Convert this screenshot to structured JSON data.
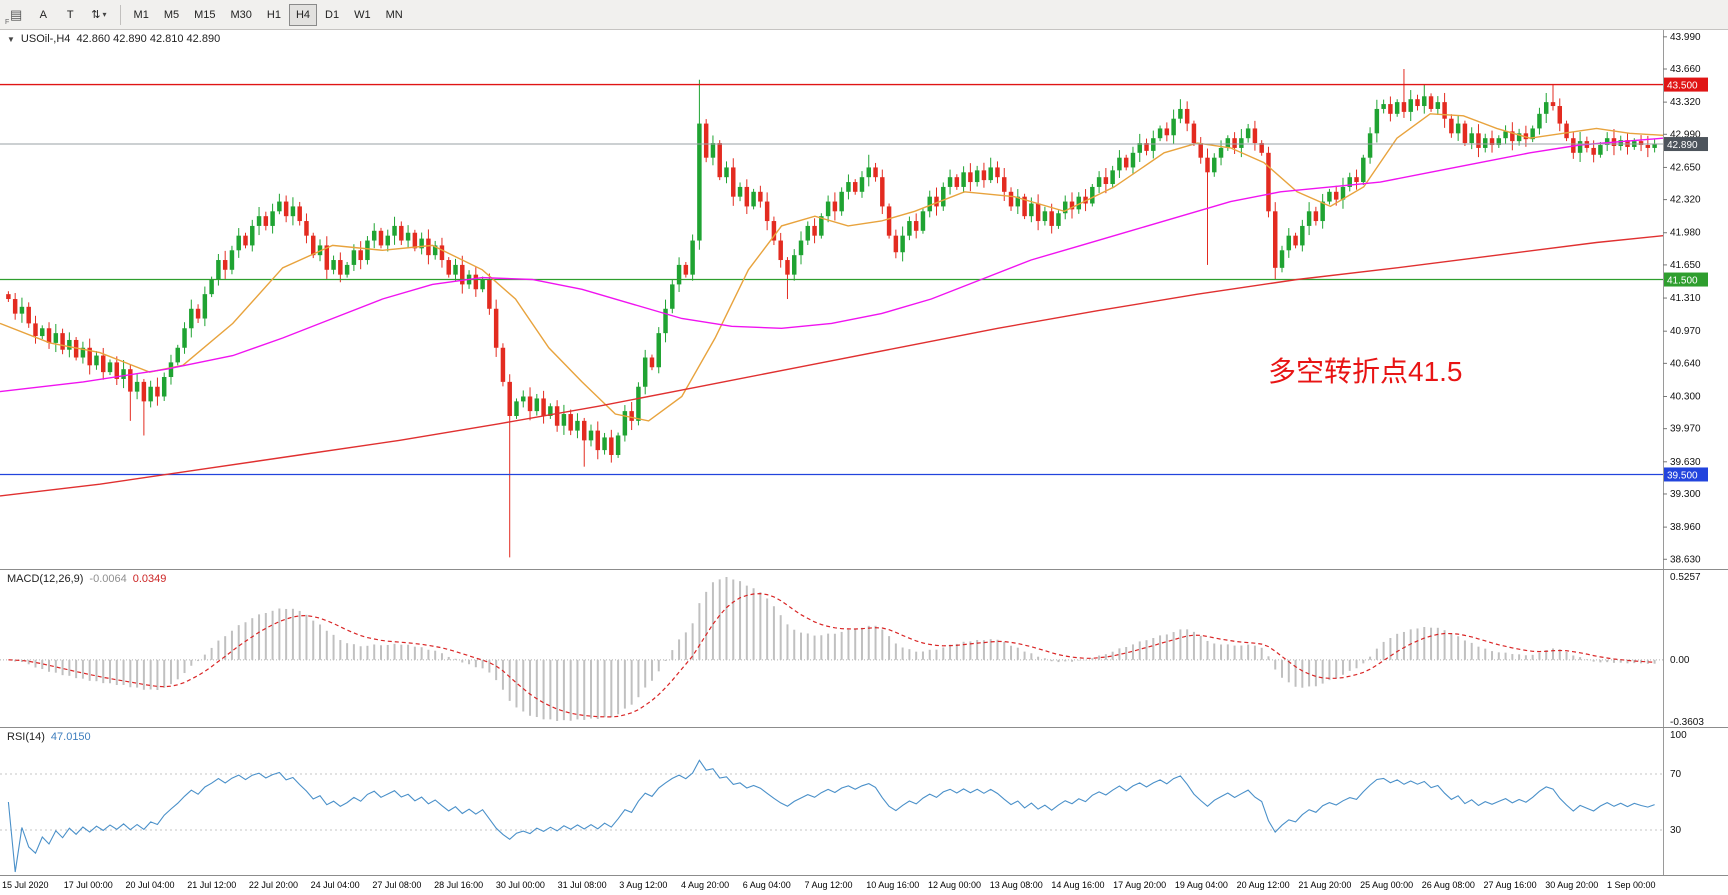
{
  "toolbar": {
    "f_label": "F",
    "annotate_button": "A",
    "text_button": "T",
    "timeframes": [
      "M1",
      "M5",
      "M15",
      "M30",
      "H1",
      "H4",
      "D1",
      "W1",
      "MN"
    ],
    "active_timeframe": "H4"
  },
  "main_chart": {
    "symbol_label": "USOil-,H4",
    "ohlc": "42.860 42.890 42.810 42.890",
    "annotation": "多空转折点41.5",
    "annotation_color": "#e81414"
  },
  "macd_panel": {
    "label": "MACD(12,26,9)",
    "value": "-0.0064",
    "signal_value": "0.0349",
    "scale_top": "0.5257",
    "scale_zero": "0.00",
    "scale_bottom": "-0.3603"
  },
  "rsi_panel": {
    "label": "RSI(14)",
    "value": "47.0150",
    "scale": [
      "100",
      "70",
      "30"
    ]
  },
  "chart_data": {
    "type": "candlestick",
    "symbol": "USOil-",
    "timeframe": "H4",
    "title": "USOil- H4 candlestick chart with MACD(12,26,9) and RSI(14)",
    "price_range": [
      38.52,
      44.06
    ],
    "y_ticks": [
      "43.990",
      "43.660",
      "43.320",
      "42.990",
      "42.650",
      "42.320",
      "41.980",
      "41.650",
      "41.310",
      "40.970",
      "40.640",
      "40.300",
      "39.970",
      "39.630",
      "39.300",
      "38.960",
      "38.630"
    ],
    "x_labels": [
      "15 Jul 2020",
      "17 Jul 00:00",
      "20 Jul 04:00",
      "21 Jul 12:00",
      "22 Jul 20:00",
      "24 Jul 04:00",
      "27 Jul 08:00",
      "28 Jul 16:00",
      "30 Jul 00:00",
      "31 Jul 08:00",
      "3 Aug 12:00",
      "4 Aug 20:00",
      "6 Aug 04:00",
      "7 Aug 12:00",
      "10 Aug 16:00",
      "12 Aug 00:00",
      "13 Aug 08:00",
      "14 Aug 16:00",
      "17 Aug 20:00",
      "19 Aug 04:00",
      "20 Aug 12:00",
      "21 Aug 20:00",
      "25 Aug 00:00",
      "26 Aug 08:00",
      "27 Aug 16:00",
      "30 Aug 20:00",
      "1 Sep 00:00"
    ],
    "hlines": [
      {
        "price": 43.5,
        "color": "#e01515",
        "label": "43.500"
      },
      {
        "price": 41.5,
        "color": "#2e9e2e",
        "label": "41.500"
      },
      {
        "price": 39.5,
        "color": "#2244dd",
        "label": "39.500"
      }
    ],
    "current_price": {
      "price": 42.89,
      "label": "42.890",
      "line_color": "#9aa0a6",
      "badge_color": "#4d545c"
    },
    "candles": {
      "up_color": "#1fa332",
      "down_color": "#e32b20",
      "first_open": 41.35,
      "closes": [
        41.3,
        41.15,
        41.22,
        41.05,
        40.92,
        41.0,
        40.85,
        40.95,
        40.78,
        40.88,
        40.7,
        40.8,
        40.62,
        40.72,
        40.55,
        40.65,
        40.48,
        40.58,
        40.35,
        40.45,
        40.25,
        40.4,
        40.3,
        40.5,
        40.65,
        40.8,
        41.0,
        41.2,
        41.1,
        41.35,
        41.5,
        41.7,
        41.6,
        41.8,
        41.95,
        41.85,
        42.05,
        42.15,
        42.05,
        42.2,
        42.3,
        42.15,
        42.25,
        42.1,
        41.95,
        41.75,
        41.85,
        41.6,
        41.7,
        41.55,
        41.65,
        41.8,
        41.7,
        41.9,
        42.0,
        41.85,
        41.95,
        42.05,
        41.9,
        41.98,
        41.82,
        41.92,
        41.75,
        41.85,
        41.7,
        41.55,
        41.65,
        41.45,
        41.55,
        41.4,
        41.5,
        41.2,
        40.8,
        40.45,
        40.1,
        40.25,
        40.3,
        40.15,
        40.28,
        40.1,
        40.2,
        40.0,
        40.12,
        39.95,
        40.05,
        39.85,
        39.95,
        39.75,
        39.88,
        39.7,
        39.9,
        40.15,
        40.05,
        40.4,
        40.7,
        40.6,
        40.95,
        41.2,
        41.45,
        41.65,
        41.55,
        41.9,
        43.1,
        42.75,
        42.9,
        42.55,
        42.65,
        42.35,
        42.45,
        42.25,
        42.4,
        42.3,
        42.1,
        41.9,
        41.7,
        41.55,
        41.75,
        41.9,
        42.05,
        41.95,
        42.15,
        42.3,
        42.2,
        42.4,
        42.5,
        42.4,
        42.55,
        42.65,
        42.55,
        42.25,
        41.95,
        41.78,
        41.95,
        42.1,
        42.0,
        42.2,
        42.35,
        42.25,
        42.45,
        42.55,
        42.45,
        42.6,
        42.5,
        42.62,
        42.52,
        42.65,
        42.55,
        42.4,
        42.25,
        42.35,
        42.15,
        42.28,
        42.1,
        42.2,
        42.05,
        42.18,
        42.3,
        42.22,
        42.35,
        42.28,
        42.45,
        42.55,
        42.48,
        42.62,
        42.75,
        42.65,
        42.8,
        42.9,
        42.82,
        42.95,
        43.05,
        42.98,
        43.15,
        43.25,
        43.1,
        42.9,
        42.75,
        42.6,
        42.75,
        42.85,
        42.95,
        42.85,
        42.95,
        43.05,
        42.9,
        42.8,
        42.2,
        41.62,
        41.8,
        41.95,
        41.85,
        42.05,
        42.2,
        42.1,
        42.3,
        42.4,
        42.32,
        42.45,
        42.55,
        42.5,
        42.75,
        43.0,
        43.25,
        43.3,
        43.2,
        43.32,
        43.22,
        43.35,
        43.28,
        43.38,
        43.25,
        43.32,
        43.15,
        43.0,
        43.1,
        42.9,
        43.0,
        42.85,
        42.95,
        42.88,
        42.95,
        43.02,
        42.92,
        43.0,
        42.94,
        43.05,
        43.2,
        43.32,
        43.28,
        43.1,
        42.95,
        42.8,
        42.92,
        42.85,
        42.78,
        42.88,
        42.95,
        42.87,
        42.93,
        42.86,
        42.92,
        42.88,
        42.85,
        42.89
      ],
      "special_wicks": [
        {
          "i": 18,
          "low": 40.05
        },
        {
          "i": 20,
          "low": 39.9
        },
        {
          "i": 40,
          "high": 42.38
        },
        {
          "i": 74,
          "low": 38.65
        },
        {
          "i": 85,
          "low": 39.58
        },
        {
          "i": 102,
          "high": 43.55
        },
        {
          "i": 115,
          "low": 41.3
        },
        {
          "i": 127,
          "high": 42.78
        },
        {
          "i": 145,
          "high": 42.75
        },
        {
          "i": 173,
          "high": 43.35
        },
        {
          "i": 177,
          "low": 41.65
        },
        {
          "i": 187,
          "low": 41.5
        },
        {
          "i": 206,
          "high": 43.66
        },
        {
          "i": 209,
          "high": 43.5
        },
        {
          "i": 228,
          "high": 43.5
        }
      ]
    },
    "ma_lines": [
      {
        "name": "ma-fast-orange",
        "color": "#e8a33d",
        "points": [
          [
            0,
            41.05
          ],
          [
            0.03,
            40.85
          ],
          [
            0.06,
            40.75
          ],
          [
            0.09,
            40.55
          ],
          [
            0.11,
            40.62
          ],
          [
            0.14,
            41.05
          ],
          [
            0.17,
            41.62
          ],
          [
            0.2,
            41.85
          ],
          [
            0.23,
            41.8
          ],
          [
            0.26,
            41.85
          ],
          [
            0.29,
            41.6
          ],
          [
            0.31,
            41.3
          ],
          [
            0.33,
            40.8
          ],
          [
            0.35,
            40.45
          ],
          [
            0.37,
            40.12
          ],
          [
            0.39,
            40.05
          ],
          [
            0.41,
            40.3
          ],
          [
            0.43,
            40.9
          ],
          [
            0.45,
            41.6
          ],
          [
            0.47,
            42.05
          ],
          [
            0.49,
            42.15
          ],
          [
            0.51,
            42.05
          ],
          [
            0.53,
            42.1
          ],
          [
            0.55,
            42.2
          ],
          [
            0.58,
            42.4
          ],
          [
            0.61,
            42.35
          ],
          [
            0.64,
            42.2
          ],
          [
            0.67,
            42.45
          ],
          [
            0.7,
            42.8
          ],
          [
            0.72,
            42.9
          ],
          [
            0.74,
            42.85
          ],
          [
            0.76,
            42.7
          ],
          [
            0.78,
            42.4
          ],
          [
            0.8,
            42.25
          ],
          [
            0.82,
            42.45
          ],
          [
            0.84,
            42.95
          ],
          [
            0.86,
            43.2
          ],
          [
            0.88,
            43.18
          ],
          [
            0.9,
            43.05
          ],
          [
            0.92,
            42.95
          ],
          [
            0.94,
            43.0
          ],
          [
            0.96,
            43.05
          ],
          [
            0.98,
            43.0
          ],
          [
            1,
            42.98
          ]
        ]
      },
      {
        "name": "ma-mid-magenta",
        "color": "#f013f0",
        "points": [
          [
            0,
            40.35
          ],
          [
            0.05,
            40.45
          ],
          [
            0.1,
            40.58
          ],
          [
            0.14,
            40.72
          ],
          [
            0.17,
            40.9
          ],
          [
            0.2,
            41.1
          ],
          [
            0.23,
            41.3
          ],
          [
            0.26,
            41.45
          ],
          [
            0.29,
            41.52
          ],
          [
            0.32,
            41.5
          ],
          [
            0.35,
            41.4
          ],
          [
            0.38,
            41.25
          ],
          [
            0.41,
            41.1
          ],
          [
            0.44,
            41.02
          ],
          [
            0.47,
            41.0
          ],
          [
            0.5,
            41.05
          ],
          [
            0.53,
            41.15
          ],
          [
            0.56,
            41.3
          ],
          [
            0.59,
            41.5
          ],
          [
            0.62,
            41.7
          ],
          [
            0.65,
            41.85
          ],
          [
            0.68,
            42.0
          ],
          [
            0.71,
            42.15
          ],
          [
            0.74,
            42.3
          ],
          [
            0.77,
            42.4
          ],
          [
            0.8,
            42.45
          ],
          [
            0.83,
            42.5
          ],
          [
            0.86,
            42.6
          ],
          [
            0.89,
            42.7
          ],
          [
            0.92,
            42.8
          ],
          [
            0.95,
            42.88
          ],
          [
            1,
            42.95
          ]
        ]
      },
      {
        "name": "ma-slow-red",
        "color": "#e03030",
        "points": [
          [
            0,
            39.28
          ],
          [
            0.06,
            39.4
          ],
          [
            0.12,
            39.55
          ],
          [
            0.18,
            39.7
          ],
          [
            0.24,
            39.85
          ],
          [
            0.3,
            40.02
          ],
          [
            0.36,
            40.2
          ],
          [
            0.42,
            40.4
          ],
          [
            0.48,
            40.6
          ],
          [
            0.54,
            40.8
          ],
          [
            0.6,
            41.0
          ],
          [
            0.66,
            41.18
          ],
          [
            0.72,
            41.35
          ],
          [
            0.78,
            41.5
          ],
          [
            0.84,
            41.62
          ],
          [
            0.9,
            41.75
          ],
          [
            0.96,
            41.88
          ],
          [
            1,
            41.95
          ]
        ]
      }
    ],
    "macd": {
      "fast": 12,
      "slow": 26,
      "signal": 9,
      "histogram_color": "#c0c0c0",
      "signal_color": "#d92525"
    },
    "rsi": {
      "period": 14,
      "color": "#4a90c9",
      "levels": [
        70,
        30
      ]
    }
  }
}
